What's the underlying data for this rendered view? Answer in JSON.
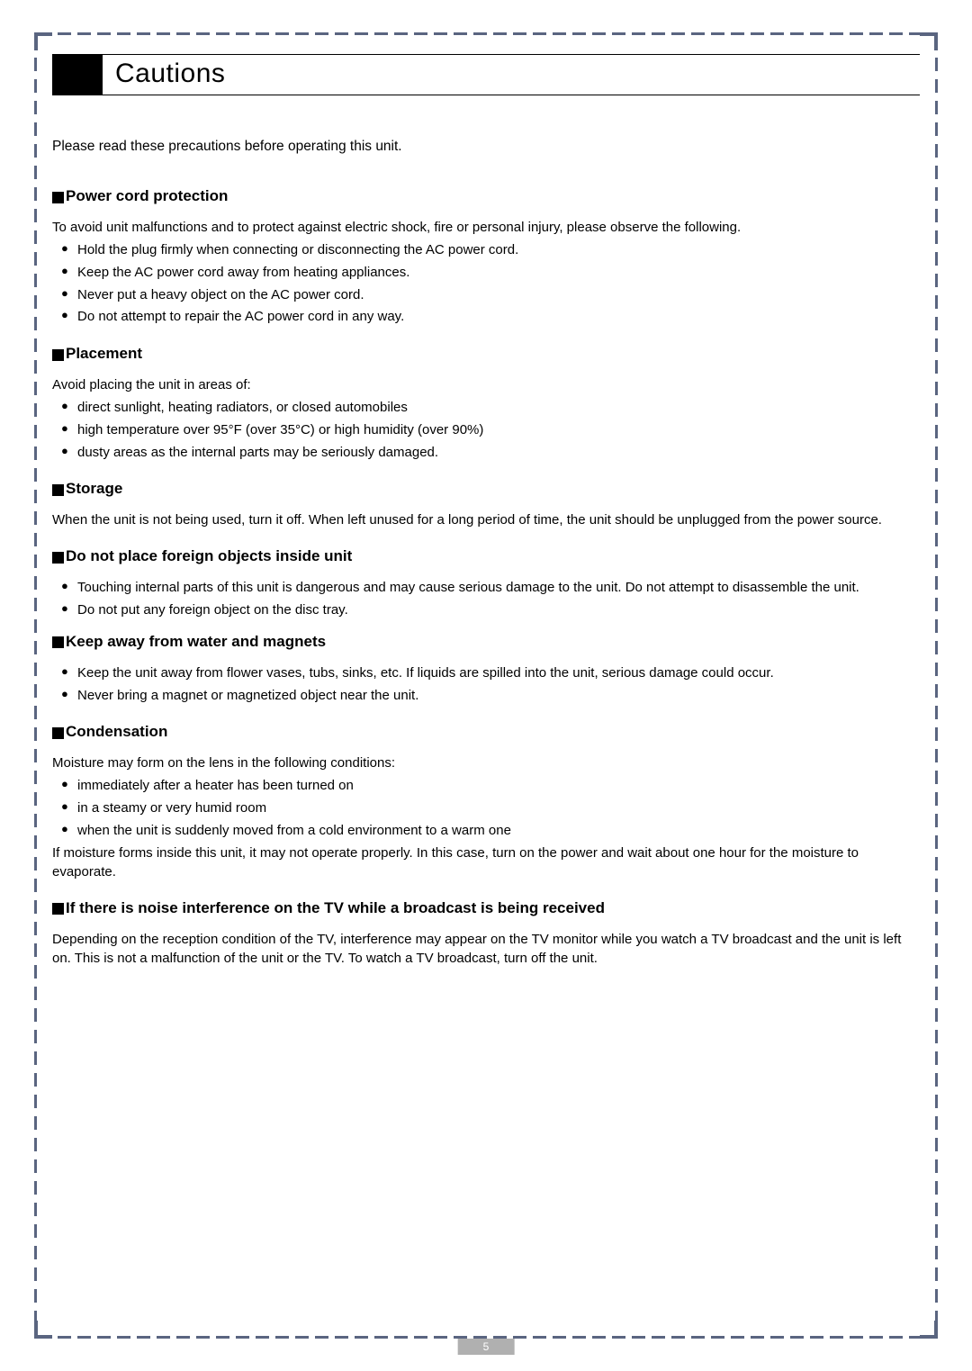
{
  "title": "Cautions",
  "intro": "Please read these precautions before operating this unit.",
  "sections": [
    {
      "heading": "Power cord protection",
      "text": "To avoid unit malfunctions and to protect against electric shock, fire or personal injury, please observe the following.",
      "bullets": [
        "Hold the plug firmly when connecting or disconnecting the AC power cord.",
        "Keep the AC power cord away from heating appliances.",
        "Never put a heavy object on the AC power cord.",
        "Do not attempt to repair the AC power cord in any way."
      ]
    },
    {
      "heading": "Placement",
      "text": "Avoid placing the unit in areas of:",
      "bullets": [
        "direct sunlight, heating radiators, or closed automobiles",
        "high temperature over 95°F (over 35°C) or high humidity (over 90%)",
        "dusty areas as  the internal parts may be seriously damaged."
      ]
    },
    {
      "heading": "Storage",
      "text": "When the unit is not being used, turn it off. When left unused for a long period of time, the unit should be unplugged from the power source."
    },
    {
      "heading": " Do not place foreign objects inside unit",
      "bullets": [
        "Touching internal parts of this unit is dangerous and may cause serious damage to the unit. Do not attempt to disassemble the unit.",
        "Do not put any foreign object on the disc tray."
      ]
    },
    {
      "heading": "Keep away from water and magnets",
      "bullets": [
        "Keep the unit away from flower vases, tubs, sinks, etc. If liquids are spilled into the unit, serious damage could occur.",
        "Never bring a magnet or magnetized object near the unit."
      ]
    },
    {
      "heading": "Condensation",
      "text": "Moisture may form on the lens in the following conditions:",
      "bullets": [
        "immediately after a heater has been turned on",
        "in a steamy or very humid room",
        "when the unit is suddenly moved from a cold environment to a warm one"
      ],
      "text_after": "If moisture forms inside this unit, it may not operate properly. In this case, turn on the power and wait about one hour for the moisture to evaporate."
    },
    {
      "heading": "If there is noise interference on the TV while a broadcast is being received",
      "text": "Depending on the reception condition of the TV, interference may appear on the TV monitor while you watch a TV broadcast and the unit is left on. This is not a malfunction of the unit or the TV. To watch a TV broadcast, turn off the unit."
    }
  ],
  "page_number": "5",
  "colors": {
    "dash": "#5a6580",
    "page_num_bg": "#b0b0b0"
  }
}
